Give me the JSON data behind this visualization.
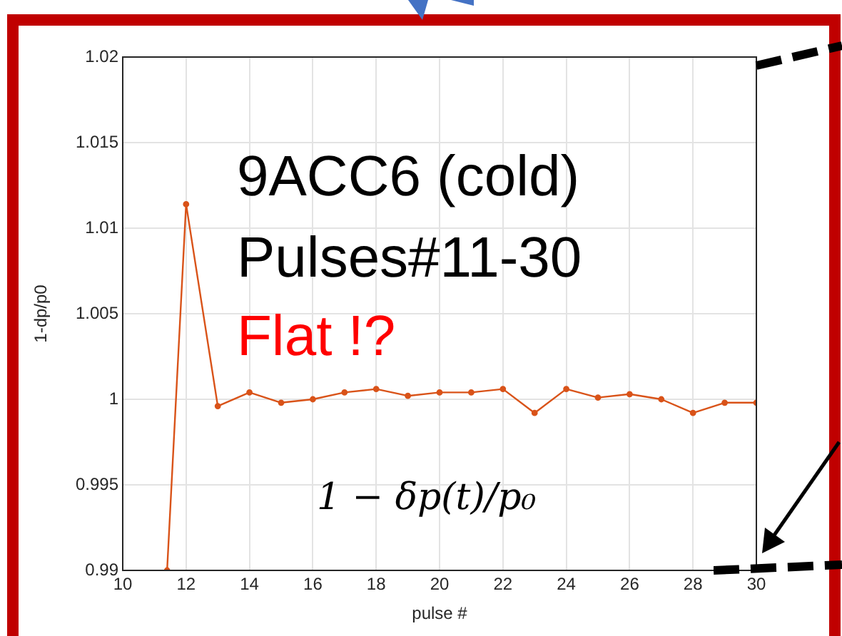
{
  "chart_data": {
    "type": "line",
    "xlabel": "pulse #",
    "ylabel": "1-dp/p0",
    "annotations": [
      "9ACC6 (cold)",
      "Pulses#11-30",
      "Flat !?",
      "1 − δp(t)/p₀"
    ],
    "series": [
      {
        "color": "#d95319",
        "x": [
          11.4,
          12,
          13,
          14,
          15,
          16,
          17,
          18,
          19,
          20,
          21,
          22,
          23,
          24,
          25,
          26,
          27,
          28,
          29,
          30
        ],
        "values": [
          0.99,
          1.0114,
          0.9996,
          1.0004,
          0.9998,
          1.0,
          1.0004,
          1.0006,
          1.0002,
          1.0004,
          1.0004,
          1.0006,
          0.9992,
          1.0006,
          1.0001,
          1.0003,
          1.0,
          0.9992,
          0.9998,
          0.9998
        ]
      }
    ],
    "xlim": [
      10,
      30
    ],
    "xticks": [
      10,
      12,
      14,
      16,
      18,
      20,
      22,
      24,
      26,
      28,
      30
    ],
    "ylim": [
      0.99,
      1.02
    ],
    "yticks": [
      0.99,
      0.995,
      1,
      1.005,
      1.01,
      1.015,
      1.02
    ],
    "grid": true,
    "legend": false,
    "marker": "circle",
    "line_style": "solid"
  }
}
